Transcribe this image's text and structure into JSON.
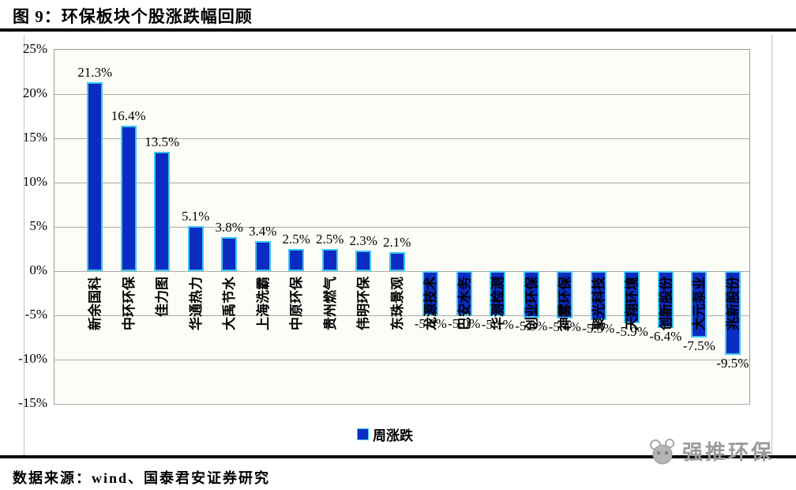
{
  "figure": {
    "title": "图 9：环保板块个股涨跌幅回顾",
    "source": "数据来源：wind、国泰君安证券研究",
    "watermark_text": "强推环保"
  },
  "legend": {
    "label": "周涨跌"
  },
  "colors": {
    "bar_fill": "#0a2cc2",
    "bar_edge": "#3ec9f0",
    "gridline": "#aaaaaa",
    "rule": "#0a0a0a",
    "watermark": "#9b9b9b"
  },
  "chart_data": {
    "type": "bar",
    "title": "图 9：环保板块个股涨跌幅回顾",
    "xlabel": "",
    "ylabel": "",
    "ylim": [
      -15,
      25
    ],
    "ytick_step": 5,
    "yticks": [
      "25%",
      "20%",
      "15%",
      "10%",
      "5%",
      "0%",
      "-5%",
      "-10%",
      "-15%"
    ],
    "grid": true,
    "legend_position": "bottom",
    "legend": [
      "周涨跌"
    ],
    "categories": [
      "新余国科",
      "中环环保",
      "佳力图",
      "华通热力",
      "大禹节水",
      "上海洗霸",
      "中原环保",
      "贵州燃气",
      "伟明环保",
      "东珠景观",
      "龙源技术",
      "巴安水务",
      "华测检测",
      "创业环保",
      "神雾环保",
      "聚光科技",
      "天翔环境",
      "创新股份",
      "大元泵业",
      "兆新股份"
    ],
    "values": [
      21.3,
      16.4,
      13.5,
      5.1,
      3.8,
      3.4,
      2.5,
      2.5,
      2.3,
      2.1,
      -5.0,
      -5.0,
      -5.1,
      -5.3,
      -5.4,
      -5.5,
      -5.9,
      -6.4,
      -7.5,
      -9.5
    ],
    "value_labels": [
      "21.3%",
      "16.4%",
      "13.5%",
      "5.1%",
      "3.8%",
      "3.4%",
      "2.5%",
      "2.5%",
      "2.3%",
      "2.1%",
      "-5.0%",
      "-5.0%",
      "-5.1%",
      "-5.3%",
      "-5.4%",
      "-5.5%",
      "-5.9%",
      "-6.4%",
      "-7.5%",
      "-9.5%"
    ]
  }
}
